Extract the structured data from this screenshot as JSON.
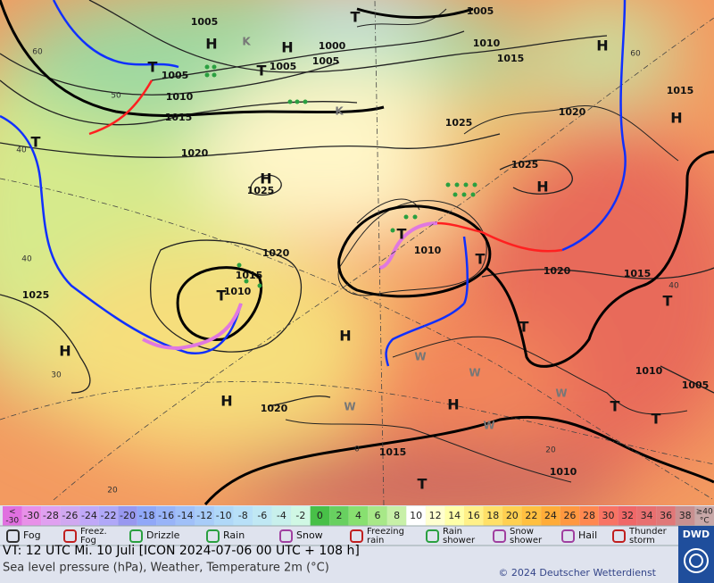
{
  "map": {
    "isobar_labels": [
      "1005",
      "1005",
      "1010",
      "1000",
      "1005",
      "1005",
      "1005",
      "1015",
      "1010",
      "1015",
      "1025",
      "1020",
      "1015",
      "1020",
      "1025",
      "1025",
      "1020",
      "1010",
      "1015",
      "1010",
      "1020",
      "1015",
      "1025",
      "1010",
      "1005",
      "1020",
      "1015",
      "1010"
    ],
    "pressure_systems": [
      "H",
      "H",
      "H",
      "H",
      "H",
      "H",
      "H",
      "H",
      "H",
      "H",
      "T",
      "T",
      "T",
      "T",
      "T",
      "T",
      "T",
      "T",
      "T",
      "T",
      "T",
      "T"
    ],
    "temperature_labels": [
      "60",
      "50",
      "40",
      "40",
      "30",
      "20",
      "60",
      "40",
      "20",
      "0"
    ],
    "weather_letters": [
      "W",
      "W",
      "W",
      "W",
      "W",
      "K",
      "K"
    ]
  },
  "color_scale": {
    "cells": [
      {
        "top": "<",
        "label": "-30",
        "color": "#e070e0"
      },
      {
        "label": "-30",
        "color": "#e890e8"
      },
      {
        "label": "-28",
        "color": "#e0a0f0"
      },
      {
        "label": "-26",
        "color": "#d0a8f0"
      },
      {
        "label": "-24",
        "color": "#c0a8f8"
      },
      {
        "label": "-22",
        "color": "#b0a8f8"
      },
      {
        "label": "-20",
        "color": "#9898f0"
      },
      {
        "label": "-18",
        "color": "#90a8f8"
      },
      {
        "label": "-16",
        "color": "#98b4f8"
      },
      {
        "label": "-14",
        "color": "#a0c0f8"
      },
      {
        "label": "-12",
        "color": "#a8ccf8"
      },
      {
        "label": "-10",
        "color": "#b0d8f8"
      },
      {
        "label": "-8",
        "color": "#b8e0f8"
      },
      {
        "label": "-6",
        "color": "#c0e8f4"
      },
      {
        "label": "-4",
        "color": "#c8f0ec"
      },
      {
        "label": "-2",
        "color": "#d0f8e4"
      },
      {
        "label": "0",
        "color": "#48c048"
      },
      {
        "label": "2",
        "color": "#68d060"
      },
      {
        "label": "4",
        "color": "#88e070"
      },
      {
        "label": "6",
        "color": "#a8e888"
      },
      {
        "label": "8",
        "color": "#c8f0a8"
      },
      {
        "label": "10",
        "color": "#ffffff"
      },
      {
        "label": "12",
        "color": "#ffffd0"
      },
      {
        "label": "14",
        "color": "#ffffa8"
      },
      {
        "label": "16",
        "color": "#fff088"
      },
      {
        "label": "18",
        "color": "#ffe068"
      },
      {
        "label": "20",
        "color": "#ffd050"
      },
      {
        "label": "22",
        "color": "#ffc040"
      },
      {
        "label": "24",
        "color": "#ffac38"
      },
      {
        "label": "26",
        "color": "#ff9840"
      },
      {
        "label": "28",
        "color": "#ff8850"
      },
      {
        "label": "30",
        "color": "#f87464"
      },
      {
        "label": "32",
        "color": "#f06868"
      },
      {
        "label": "34",
        "color": "#e87070"
      },
      {
        "label": "36",
        "color": "#e07878"
      },
      {
        "label": "38",
        "color": "#c89090"
      },
      {
        "top": "≥40",
        "label": "°C",
        "color": "#c8a8a8"
      }
    ]
  },
  "legend": [
    {
      "lines": [
        "Fog"
      ]
    },
    {
      "lines": [
        "Freez.",
        "Fog"
      ]
    },
    {
      "lines": [
        "Drizzle"
      ]
    },
    {
      "lines": [
        "Rain"
      ]
    },
    {
      "lines": [
        "Snow"
      ]
    },
    {
      "lines": [
        "Freezing",
        "rain"
      ]
    },
    {
      "lines": [
        "Rain",
        "shower"
      ]
    },
    {
      "lines": [
        "Snow",
        "shower"
      ]
    },
    {
      "lines": [
        "Hail"
      ]
    },
    {
      "lines": [
        "Thunder",
        "storm"
      ]
    }
  ],
  "footer": {
    "valid_time": "VT: 12 UTC Mi.   10 Juli [ICON 2024-07-06  00 UTC + 108 h]",
    "description": "Sea level pressure (hPa), Weather, Temperature 2m (°C)",
    "copyright": "© 2024 Deutscher Wetterdienst",
    "logo": "DWD"
  }
}
